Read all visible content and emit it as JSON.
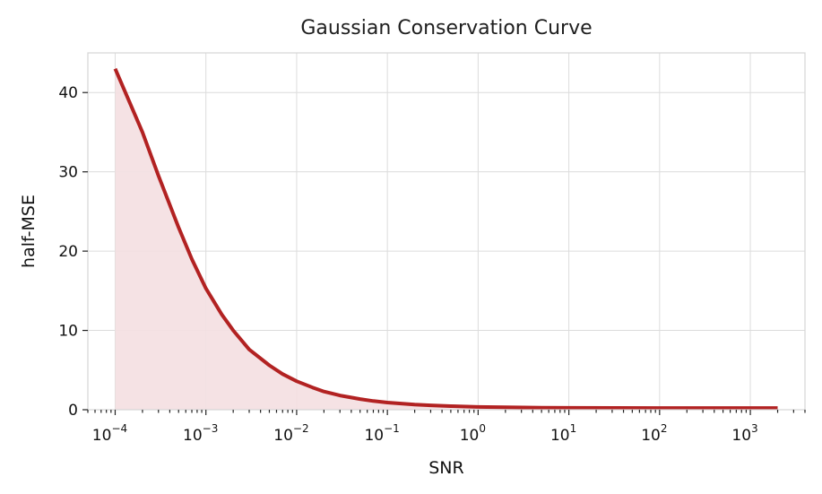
{
  "chart_data": {
    "type": "area",
    "title": "Gaussian Conservation Curve",
    "xlabel": "SNR",
    "ylabel": "half-MSE",
    "x_scale": "log",
    "xlim": [
      5e-05,
      4000
    ],
    "ylim": [
      0,
      45
    ],
    "grid": true,
    "colors": {
      "line": "#b22222",
      "fill": "#f4dfe1",
      "grid": "#dcdcdc",
      "spine": "#d6d6d6"
    },
    "y_ticks": [
      {
        "value": 0,
        "label": "0"
      },
      {
        "value": 10,
        "label": "10"
      },
      {
        "value": 20,
        "label": "20"
      },
      {
        "value": 30,
        "label": "30"
      },
      {
        "value": 40,
        "label": "40"
      }
    ],
    "x_ticks": [
      {
        "value": 0.0001,
        "base": "10",
        "exp": "−4"
      },
      {
        "value": 0.001,
        "base": "10",
        "exp": "−3"
      },
      {
        "value": 0.01,
        "base": "10",
        "exp": "−2"
      },
      {
        "value": 0.1,
        "base": "10",
        "exp": "−1"
      },
      {
        "value": 1,
        "base": "10",
        "exp": "0"
      },
      {
        "value": 10,
        "base": "10",
        "exp": "1"
      },
      {
        "value": 100,
        "base": "10",
        "exp": "2"
      },
      {
        "value": 1000,
        "base": "10",
        "exp": "3"
      }
    ],
    "series": [
      {
        "x": [
          0.0001,
          0.0002,
          0.0003,
          0.0005,
          0.0007,
          0.001,
          0.0015,
          0.002,
          0.003,
          0.005,
          0.007,
          0.01,
          0.015,
          0.02,
          0.03,
          0.05,
          0.07,
          0.1,
          0.2,
          0.3,
          0.5,
          1,
          2,
          5,
          10,
          100,
          1000,
          2000
        ],
        "y": [
          43,
          35,
          29.5,
          23,
          19,
          15.3,
          12,
          10,
          7.6,
          5.6,
          4.5,
          3.6,
          2.8,
          2.3,
          1.8,
          1.35,
          1.1,
          0.9,
          0.65,
          0.55,
          0.45,
          0.35,
          0.3,
          0.26,
          0.24,
          0.22,
          0.21,
          0.21
        ]
      }
    ]
  }
}
